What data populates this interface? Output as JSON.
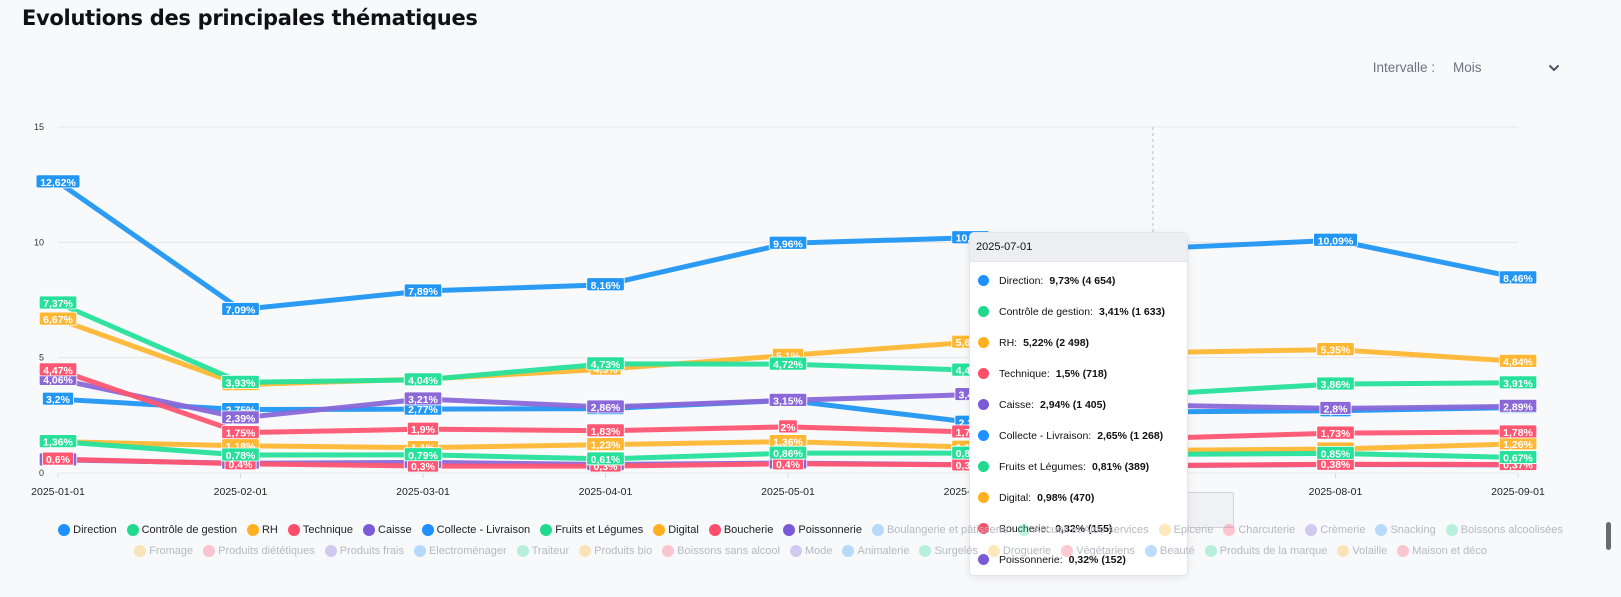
{
  "title": "Evolutions des principales thématiques",
  "interval": {
    "label": "Intervalle :",
    "value": "Mois",
    "icon": "chevron-down-icon"
  },
  "tooltip": {
    "date": "2025-07-01",
    "rows": [
      {
        "name": "Direction:",
        "value": "9,73% (4 654)",
        "color": "#1e90ff"
      },
      {
        "name": "Contrôle de gestion:",
        "value": "3,41% (1 633)",
        "color": "#20d98f"
      },
      {
        "name": "RH:",
        "value": "5,22% (2 498)",
        "color": "#ffb020"
      },
      {
        "name": "Technique:",
        "value": "1,5% (718)",
        "color": "#ff4d6a"
      },
      {
        "name": "Caisse:",
        "value": "2,94% (1 405)",
        "color": "#7b5ad6"
      },
      {
        "name": "Collecte - Livraison:",
        "value": "2,65% (1 268)",
        "color": "#1e90ff"
      },
      {
        "name": "Fruits et Légumes:",
        "value": "0,81% (389)",
        "color": "#20d98f"
      },
      {
        "name": "Digital:",
        "value": "0,98% (470)",
        "color": "#ffb020"
      },
      {
        "name": "Boucherie:",
        "value": "0,32% (155)",
        "color": "#ff4d6a"
      },
      {
        "name": "Poissonnerie:",
        "value": "0,32% (152)",
        "color": "#7b5ad6"
      }
    ]
  },
  "legend": {
    "row1": [
      {
        "name": "Direction",
        "color": "#1e90ff",
        "active": true
      },
      {
        "name": "Contrôle de gestion",
        "color": "#20d98f",
        "active": true
      },
      {
        "name": "RH",
        "color": "#ffb020",
        "active": true
      },
      {
        "name": "Technique",
        "color": "#ff4d6a",
        "active": true
      },
      {
        "name": "Caisse",
        "color": "#7b5ad6",
        "active": true
      },
      {
        "name": "Collecte - Livraison",
        "color": "#1e90ff",
        "active": true
      },
      {
        "name": "Fruits et Légumes",
        "color": "#20d98f",
        "active": true
      },
      {
        "name": "Digital",
        "color": "#ffb020",
        "active": true
      },
      {
        "name": "Boucherie",
        "color": "#ff4d6a",
        "active": true
      },
      {
        "name": "Poissonnerie",
        "color": "#7b5ad6",
        "active": true
      },
      {
        "name": "Boulangerie et pâtisserie",
        "color": "#1e90ff",
        "active": false
      },
      {
        "name": "Accueil et Aide services",
        "color": "#20d98f",
        "active": false
      },
      {
        "name": "Epicerie",
        "color": "#ffb020",
        "active": false
      },
      {
        "name": "Charcuterie",
        "color": "#ff4d6a",
        "active": false
      },
      {
        "name": "Crèmerie",
        "color": "#7b5ad6",
        "active": false
      },
      {
        "name": "Snacking",
        "color": "#1e90ff",
        "active": false
      },
      {
        "name": "Boissons alcoolisées",
        "color": "#20d98f",
        "active": false
      }
    ],
    "row2": [
      {
        "name": "Fromage",
        "color": "#ffb020",
        "active": false
      },
      {
        "name": "Produits diététiques",
        "color": "#ff4d6a",
        "active": false
      },
      {
        "name": "Produits frais",
        "color": "#7b5ad6",
        "active": false
      },
      {
        "name": "Electroménager",
        "color": "#1e90ff",
        "active": false
      },
      {
        "name": "Traiteur",
        "color": "#20d98f",
        "active": false
      },
      {
        "name": "Produits bio",
        "color": "#ffb020",
        "active": false
      },
      {
        "name": "Boissons sans alcool",
        "color": "#ff4d6a",
        "active": false
      },
      {
        "name": "Mode",
        "color": "#7b5ad6",
        "active": false
      },
      {
        "name": "Animalerie",
        "color": "#1e90ff",
        "active": false
      },
      {
        "name": "Surgelés",
        "color": "#20d98f",
        "active": false
      },
      {
        "name": "Droguerie",
        "color": "#ffb020",
        "active": false
      },
      {
        "name": "Végétariens",
        "color": "#ff4d6a",
        "active": false
      },
      {
        "name": "Beauté",
        "color": "#1e90ff",
        "active": false
      },
      {
        "name": "Produits de la marque",
        "color": "#20d98f",
        "active": false
      },
      {
        "name": "Volaille",
        "color": "#ffb020",
        "active": false
      },
      {
        "name": "Maison et déco",
        "color": "#ff4d6a",
        "active": false
      }
    ]
  },
  "chart_data": {
    "type": "line",
    "title": "Evolutions des principales thématiques",
    "xlabel": "",
    "ylabel": "",
    "x": [
      "2025-01-01",
      "2025-02-01",
      "2025-03-01",
      "2025-04-01",
      "2025-05-01",
      "2025-06-01",
      "2025-07-01",
      "2025-08-01",
      "2025-09-01"
    ],
    "yticks": [
      0,
      5,
      10,
      15
    ],
    "ylim": [
      0,
      15
    ],
    "grid": true,
    "legend_position": "bottom",
    "hover_x": "2025-07-01",
    "series": [
      {
        "name": "Direction",
        "color": "#2196f3",
        "values": [
          12.62,
          7.09,
          7.89,
          8.16,
          9.96,
          10.2,
          9.73,
          10.09,
          8.46
        ],
        "labels": [
          "12,62%",
          "7,09%",
          "7,89%",
          "8,16%",
          "9,96%",
          "10,2%",
          "9,73%",
          "10,09%",
          "8,46%"
        ]
      },
      {
        "name": "Contrôle de gestion",
        "color": "#26e09b",
        "values": [
          7.37,
          3.93,
          4.04,
          4.73,
          4.72,
          4.46,
          3.41,
          3.86,
          3.91
        ],
        "labels": [
          "7,37%",
          "3,93%",
          "4,04%",
          "4,73%",
          "4,72%",
          "4,46%",
          "3,41%",
          "3,86%",
          "3,91%"
        ]
      },
      {
        "name": "RH",
        "color": "#ffb734",
        "values": [
          6.67,
          3.83,
          4.07,
          4.5,
          5.1,
          5.67,
          5.22,
          5.35,
          4.84
        ],
        "labels": [
          "6,67%",
          "3,83%",
          "4,07%",
          "4,5%",
          "5,1%",
          "5,67%",
          "5,22%",
          "5,35%",
          "4,84%"
        ]
      },
      {
        "name": "Technique",
        "color": "#ff5672",
        "values": [
          4.47,
          1.75,
          1.9,
          1.83,
          2.0,
          1.78,
          1.5,
          1.73,
          1.78
        ],
        "labels": [
          "4,47%",
          "1,75%",
          "1,9%",
          "1,83%",
          "2%",
          "1,78%",
          "1,5%",
          "1,73%",
          "1,78%"
        ]
      },
      {
        "name": "Caisse",
        "color": "#8a68d8",
        "values": [
          4.06,
          2.39,
          3.21,
          2.86,
          3.15,
          3.4,
          2.94,
          2.8,
          2.89
        ],
        "labels": [
          "4,06%",
          "2,39%",
          "3,21%",
          "2,86%",
          "3,15%",
          "3,4%",
          "2,94%",
          "2,8%",
          "2,89%"
        ]
      },
      {
        "name": "Collecte - Livraison",
        "color": "#2196f3",
        "values": [
          3.2,
          2.75,
          2.77,
          2.79,
          3.15,
          2.2,
          2.65,
          2.7,
          2.84
        ],
        "labels": [
          "3,2%",
          "2,75%",
          "2,77%",
          "2,79%",
          "3,15%",
          "2,2%",
          "2,65%",
          "2,7%",
          "2,84%"
        ]
      },
      {
        "name": "Fruits et Légumes",
        "color": "#26e09b",
        "values": [
          1.36,
          0.78,
          0.79,
          0.61,
          0.86,
          0.86,
          0.81,
          0.85,
          0.67
        ],
        "labels": [
          "1,36%",
          "0,78%",
          "0,79%",
          "0,61%",
          "0,86%",
          "0,86%",
          "0,81%",
          "0,85%",
          "0,67%"
        ]
      },
      {
        "name": "Digital",
        "color": "#ffb734",
        "values": [
          1.36,
          1.18,
          1.1,
          1.23,
          1.36,
          1.12,
          0.98,
          1.04,
          1.26
        ],
        "labels": [
          "1,36%",
          "1,18%",
          "1,1%",
          "1,23%",
          "1,36%",
          "1,12%",
          "0,98%",
          "1,04%",
          "1,26%"
        ]
      },
      {
        "name": "Boucherie",
        "color": "#ff5672",
        "values": [
          0.6,
          0.4,
          0.3,
          0.3,
          0.4,
          0.35,
          0.32,
          0.38,
          0.37
        ],
        "labels": [
          "0,6%",
          "0,4%",
          "0,3%",
          "0,3%",
          "0,4%",
          "0,35%",
          "0,32%",
          "0,38%",
          "0,37%"
        ]
      },
      {
        "name": "Poissonnerie",
        "color": "#8a68d8",
        "values": [
          0.57,
          0.42,
          0.46,
          0.37,
          0.43,
          0.36,
          0.32,
          0.37,
          0.35
        ],
        "labels": [
          "0,57%",
          "0,42%",
          "0,46%",
          "0,37%",
          "0,43%",
          "0,36%",
          "0,32%",
          "0,37%",
          "0,35%"
        ]
      }
    ]
  }
}
